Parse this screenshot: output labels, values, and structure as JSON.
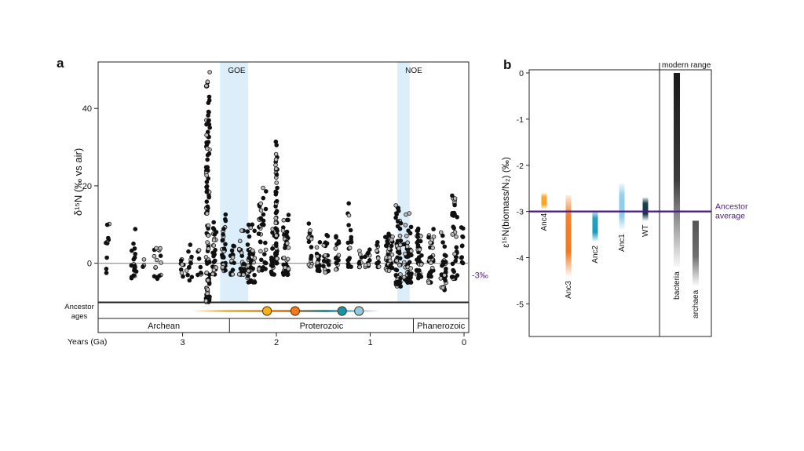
{
  "chart_data": [
    {
      "panel_label": "a",
      "type": "scatter",
      "ylabel": "δ¹⁵N (‰ vs air)",
      "xlabel": "Years (Ga)",
      "x_reversed": true,
      "xlim": [
        3.9,
        -0.05
      ],
      "ylim": [
        -10,
        52
      ],
      "x_ticks": [
        "3",
        "2",
        "1",
        "0"
      ],
      "y_ticks": [
        "0",
        "20",
        "40"
      ],
      "zero_line": true,
      "shaded_intervals": [
        {
          "label": "GOE",
          "from": 2.6,
          "to": 2.3,
          "color": "#cfe8f7"
        },
        {
          "label": "NOE",
          "from": 0.71,
          "to": 0.58,
          "color": "#cfe8f7"
        }
      ],
      "average_line": {
        "label": "-3‰",
        "value": -3,
        "from": 2.6,
        "to": 0.0,
        "color": "#6a1b9a"
      },
      "eons_label": "Ancestor\nages",
      "eons": [
        {
          "label": "Archean",
          "from": 3.9,
          "to": 2.5
        },
        {
          "label": "Proterozoic",
          "from": 2.5,
          "to": 0.54
        },
        {
          "label": "Phanerozoic",
          "from": 0.54,
          "to": -0.05
        }
      ],
      "ancestor_gradient": {
        "from": 2.9,
        "to": 0.9
      },
      "ancestor_ages": [
        {
          "age": 2.1,
          "color": "#f5b21b"
        },
        {
          "age": 1.8,
          "color": "#f07a1c"
        },
        {
          "age": 1.3,
          "color": "#1594b0"
        },
        {
          "age": 1.12,
          "color": "#8ccbe9"
        }
      ],
      "point_clusters": [
        {
          "x": 3.8,
          "spread": 0.02,
          "y_min": -3,
          "y_max": 12,
          "n": 10
        },
        {
          "x": 3.52,
          "spread": 0.03,
          "y_min": -4,
          "y_max": 11,
          "n": 18
        },
        {
          "x": 3.42,
          "spread": 0.01,
          "y_min": -1,
          "y_max": 1,
          "n": 3
        },
        {
          "x": 3.27,
          "spread": 0.04,
          "y_min": -4,
          "y_max": 5,
          "n": 16
        },
        {
          "x": 3.0,
          "spread": 0.02,
          "y_min": -4,
          "y_max": 2,
          "n": 8
        },
        {
          "x": 2.93,
          "spread": 0.03,
          "y_min": -5,
          "y_max": 5,
          "n": 12
        },
        {
          "x": 2.82,
          "spread": 0.02,
          "y_min": -3,
          "y_max": 4,
          "n": 8
        },
        {
          "x": 2.73,
          "spread": 0.02,
          "y_min": -10,
          "y_max": 50,
          "n": 110
        },
        {
          "x": 2.66,
          "spread": 0.02,
          "y_min": -3,
          "y_max": 11,
          "n": 28
        },
        {
          "x": 2.56,
          "spread": 0.02,
          "y_min": -2,
          "y_max": 13,
          "n": 30
        },
        {
          "x": 2.47,
          "spread": 0.02,
          "y_min": -3,
          "y_max": 5,
          "n": 14
        },
        {
          "x": 2.37,
          "spread": 0.03,
          "y_min": -3,
          "y_max": 9,
          "n": 22
        },
        {
          "x": 2.27,
          "spread": 0.04,
          "y_min": -5,
          "y_max": 11,
          "n": 40
        },
        {
          "x": 2.15,
          "spread": 0.04,
          "y_min": -2,
          "y_max": 20,
          "n": 40
        },
        {
          "x": 2.04,
          "spread": 0.02,
          "y_min": -3,
          "y_max": 9,
          "n": 20
        },
        {
          "x": 2.0,
          "spread": 0.01,
          "y_min": 0,
          "y_max": 32,
          "n": 60
        },
        {
          "x": 1.9,
          "spread": 0.03,
          "y_min": -3,
          "y_max": 13,
          "n": 40
        },
        {
          "x": 1.64,
          "spread": 0.02,
          "y_min": -1,
          "y_max": 11,
          "n": 20
        },
        {
          "x": 1.55,
          "spread": 0.02,
          "y_min": -2,
          "y_max": 6,
          "n": 18
        },
        {
          "x": 1.47,
          "spread": 0.03,
          "y_min": -3,
          "y_max": 8,
          "n": 22
        },
        {
          "x": 1.35,
          "spread": 0.02,
          "y_min": -2,
          "y_max": 8,
          "n": 16
        },
        {
          "x": 1.22,
          "spread": 0.02,
          "y_min": -1,
          "y_max": 16,
          "n": 20
        },
        {
          "x": 1.1,
          "spread": 0.02,
          "y_min": -1,
          "y_max": 4,
          "n": 10
        },
        {
          "x": 1.03,
          "spread": 0.03,
          "y_min": -1,
          "y_max": 4,
          "n": 12
        },
        {
          "x": 0.92,
          "spread": 0.02,
          "y_min": -1,
          "y_max": 7,
          "n": 12
        },
        {
          "x": 0.8,
          "spread": 0.04,
          "y_min": -2,
          "y_max": 8,
          "n": 40
        },
        {
          "x": 0.7,
          "spread": 0.03,
          "y_min": -6,
          "y_max": 16,
          "n": 60
        },
        {
          "x": 0.6,
          "spread": 0.04,
          "y_min": -5,
          "y_max": 13,
          "n": 50
        },
        {
          "x": 0.48,
          "spread": 0.03,
          "y_min": -4,
          "y_max": 10,
          "n": 35
        },
        {
          "x": 0.35,
          "spread": 0.03,
          "y_min": -5,
          "y_max": 9,
          "n": 30
        },
        {
          "x": 0.22,
          "spread": 0.03,
          "y_min": -7,
          "y_max": 8,
          "n": 35
        },
        {
          "x": 0.1,
          "spread": 0.03,
          "y_min": -4,
          "y_max": 19,
          "n": 35
        },
        {
          "x": 0.02,
          "spread": 0.01,
          "y_min": 0,
          "y_max": 10,
          "n": 10
        }
      ]
    },
    {
      "panel_label": "b",
      "type": "bar",
      "ylabel": "ε¹⁵N(biomass/N₂) (‰)",
      "ylim": [
        -5.45,
        0.05
      ],
      "y_ticks": [
        "0",
        "-1",
        "-2",
        "-3",
        "-4",
        "-5"
      ],
      "average_line": {
        "label": "Ancestor average",
        "value": -3,
        "color": "#4b1a86"
      },
      "modern_range_label": "modern range",
      "bars": [
        {
          "label": "Anc4",
          "top": -2.6,
          "bottom": -2.95,
          "color": "#f5a623",
          "group": "ancestor"
        },
        {
          "label": "Anc3",
          "top": -2.65,
          "bottom": -4.4,
          "color": "#f47a1f",
          "group": "ancestor"
        },
        {
          "label": "Anc2",
          "top": -2.98,
          "bottom": -3.65,
          "color": "#1a9bbd",
          "group": "ancestor"
        },
        {
          "label": "Anc1",
          "top": -2.4,
          "bottom": -3.4,
          "color": "#8ecdea",
          "group": "ancestor"
        },
        {
          "label": "WT",
          "top": -2.7,
          "bottom": -3.2,
          "color": "#0f3944",
          "group": "ancestor"
        },
        {
          "label": "bacteria",
          "top": 0.0,
          "bottom": -4.2,
          "color": "#1a1a1a",
          "group": "modern"
        },
        {
          "label": "archaea",
          "top": -3.2,
          "bottom": -4.6,
          "color": "#555555",
          "group": "modern"
        }
      ]
    }
  ]
}
